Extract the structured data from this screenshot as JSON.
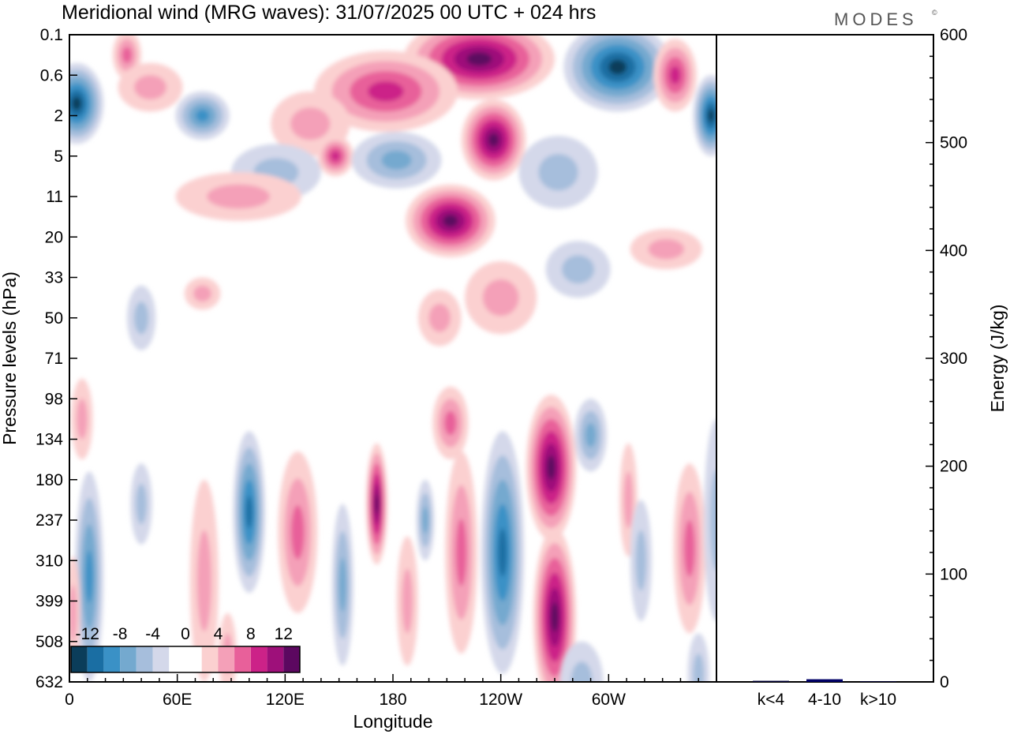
{
  "chart_data": [
    {
      "type": "heatmap",
      "title": "Meridional wind (MRG waves):  31/07/2025  00 UTC  + 024 hrs",
      "xlabel": "Longitude",
      "ylabel": "Pressure levels (hPa)",
      "x_ticks": [
        {
          "lon": 0,
          "label": "0"
        },
        {
          "lon": 60,
          "label": "60E"
        },
        {
          "lon": 120,
          "label": "120E"
        },
        {
          "lon": 180,
          "label": "180"
        },
        {
          "lon": 240,
          "label": "120W"
        },
        {
          "lon": 300,
          "label": "60W"
        }
      ],
      "x_range": [
        0,
        360
      ],
      "y_levels": [
        "0.1",
        "0.6",
        "2",
        "5",
        "11",
        "20",
        "33",
        "50",
        "71",
        "98",
        "134",
        "180",
        "237",
        "310",
        "399",
        "508",
        "632"
      ],
      "colorbar": {
        "labels": [
          "-12",
          "-8",
          "-4",
          "0",
          "4",
          "8",
          "12"
        ],
        "colors": [
          "#0b3d5a",
          "#1a6ea3",
          "#3a91c6",
          "#74a9cf",
          "#a6bedc",
          "#d4d8ea",
          "#ffffff",
          "#ffffff",
          "#fbd0d0",
          "#f4a0b8",
          "#e8609a",
          "#cc2288",
          "#9e107a",
          "#5c0860"
        ]
      },
      "blobs": [
        {
          "lon": 228,
          "lev": 0.6,
          "rx": 42,
          "ry": 1.0,
          "v": 13
        },
        {
          "lon": 236,
          "lev": 2.6,
          "rx": 18,
          "ry": 1.0,
          "v": 11
        },
        {
          "lon": 176,
          "lev": 1.4,
          "rx": 40,
          "ry": 1.0,
          "v": 7
        },
        {
          "lon": 134,
          "lev": 2.2,
          "rx": 22,
          "ry": 0.8,
          "v": 4
        },
        {
          "lon": 32,
          "lev": 0.5,
          "rx": 8,
          "ry": 0.6,
          "v": 6
        },
        {
          "lon": 45,
          "lev": 1.3,
          "rx": 18,
          "ry": 0.6,
          "v": 4
        },
        {
          "lon": 115,
          "lev": 3.4,
          "rx": 25,
          "ry": 0.7,
          "v": -4
        },
        {
          "lon": 148,
          "lev": 3.0,
          "rx": 10,
          "ry": 0.5,
          "v": 8
        },
        {
          "lon": 212,
          "lev": 4.6,
          "rx": 25,
          "ry": 0.9,
          "v": 11
        },
        {
          "lon": 94,
          "lev": 4.0,
          "rx": 35,
          "ry": 0.6,
          "v": 4
        },
        {
          "lon": 305,
          "lev": 0.8,
          "rx": 30,
          "ry": 1.1,
          "v": -15
        },
        {
          "lon": 4,
          "lev": 1.7,
          "rx": 15,
          "ry": 1.0,
          "v": -15
        },
        {
          "lon": 74,
          "lev": 2.0,
          "rx": 15,
          "ry": 0.6,
          "v": -8
        },
        {
          "lon": 357,
          "lev": 2.0,
          "rx": 10,
          "ry": 1.0,
          "v": -12
        },
        {
          "lon": 337,
          "lev": 1.0,
          "rx": 12,
          "ry": 0.9,
          "v": 8
        },
        {
          "lon": 182,
          "lev": 3.1,
          "rx": 25,
          "ry": 0.7,
          "v": -5
        },
        {
          "lon": 272,
          "lev": 3.4,
          "rx": 22,
          "ry": 0.9,
          "v": -4
        },
        {
          "lon": 332,
          "lev": 5.3,
          "rx": 20,
          "ry": 0.5,
          "v": 4
        },
        {
          "lon": 283,
          "lev": 5.8,
          "rx": 18,
          "ry": 0.7,
          "v": -4
        },
        {
          "lon": 240,
          "lev": 6.5,
          "rx": 20,
          "ry": 0.9,
          "v": 3
        },
        {
          "lon": 74,
          "lev": 6.4,
          "rx": 10,
          "ry": 0.4,
          "v": 3
        },
        {
          "lon": 40,
          "lev": 7.0,
          "rx": 8,
          "ry": 0.8,
          "v": -3
        },
        {
          "lon": 206,
          "lev": 7.0,
          "rx": 12,
          "ry": 0.7,
          "v": 3
        },
        {
          "lon": 11,
          "lev": 13.4,
          "rx": 8,
          "ry": 2.6,
          "v": -8
        },
        {
          "lon": 40,
          "lev": 11.6,
          "rx": 6,
          "ry": 1.0,
          "v": -3
        },
        {
          "lon": 75,
          "lev": 13.5,
          "rx": 8,
          "ry": 2.5,
          "v": 3
        },
        {
          "lon": 100,
          "lev": 11.8,
          "rx": 9,
          "ry": 2.0,
          "v": -10
        },
        {
          "lon": 127,
          "lev": 12.3,
          "rx": 11,
          "ry": 2.0,
          "v": 6
        },
        {
          "lon": 152,
          "lev": 13.6,
          "rx": 6,
          "ry": 2.0,
          "v": -6
        },
        {
          "lon": 171,
          "lev": 11.6,
          "rx": 6,
          "ry": 1.5,
          "v": 11
        },
        {
          "lon": 188,
          "lev": 14.0,
          "rx": 6,
          "ry": 1.6,
          "v": 3
        },
        {
          "lon": 198,
          "lev": 12.0,
          "rx": 5,
          "ry": 1.0,
          "v": -5
        },
        {
          "lon": 218,
          "lev": 12.8,
          "rx": 9,
          "ry": 2.5,
          "v": 6
        },
        {
          "lon": 212,
          "lev": 9.6,
          "rx": 10,
          "ry": 0.9,
          "v": 6
        },
        {
          "lon": 241,
          "lev": 12.8,
          "rx": 12,
          "ry": 3.0,
          "v": -10
        },
        {
          "lon": 268,
          "lev": 10.7,
          "rx": 14,
          "ry": 1.8,
          "v": 13
        },
        {
          "lon": 270,
          "lev": 14.4,
          "rx": 12,
          "ry": 2.2,
          "v": 11
        },
        {
          "lon": 290,
          "lev": 9.9,
          "rx": 9,
          "ry": 0.9,
          "v": -6
        },
        {
          "lon": 311,
          "lev": 11.5,
          "rx": 5,
          "ry": 1.4,
          "v": 4
        },
        {
          "lon": 318,
          "lev": 13.0,
          "rx": 6,
          "ry": 1.5,
          "v": -4
        },
        {
          "lon": 345,
          "lev": 12.7,
          "rx": 9,
          "ry": 2.1,
          "v": 6
        },
        {
          "lon": 360,
          "lev": 12.0,
          "rx": 7,
          "ry": 2.5,
          "v": -4
        },
        {
          "lon": 7,
          "lev": 9.5,
          "rx": 6,
          "ry": 1.0,
          "v": 4
        },
        {
          "lon": 2,
          "lev": 14.3,
          "rx": 4,
          "ry": 1.4,
          "v": 3
        },
        {
          "lon": 88,
          "lev": 15.3,
          "rx": 5,
          "ry": 1.0,
          "v": 3
        },
        {
          "lon": 285,
          "lev": 16.0,
          "rx": 12,
          "ry": 1.0,
          "v": -3
        },
        {
          "lon": 350,
          "lev": 15.8,
          "rx": 6,
          "ry": 1.0,
          "v": -4
        }
      ]
    },
    {
      "type": "bar",
      "ylabel": "Energy (J/kg)",
      "ylim": [
        0,
        600
      ],
      "y_ticks": [
        "0",
        "100",
        "200",
        "300",
        "400",
        "500",
        "600"
      ],
      "categories": [
        "k<4",
        "4-10",
        "k>10"
      ],
      "values": [
        1.0,
        2.5,
        0.3
      ],
      "colors": [
        "#000033",
        "#000066",
        "#000066"
      ]
    }
  ],
  "branding": {
    "text": "MODES",
    "mark": "©"
  }
}
